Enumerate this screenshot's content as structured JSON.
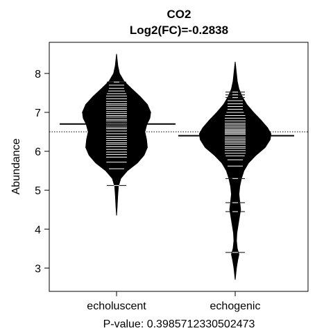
{
  "chart_data": {
    "type": "beanplot",
    "title": "CO2",
    "subtitle": "Log2(FC)=-0.2838",
    "ylabel": "Abundance",
    "xlabel": "P-value: 0.3985712330502473",
    "ylim": [
      2.4,
      8.8
    ],
    "yticks": [
      3,
      4,
      5,
      6,
      7,
      8
    ],
    "overall_mean": 6.5,
    "categories": [
      "echoluscent",
      "echogenic"
    ],
    "beans": [
      {
        "name": "echoluscent",
        "mean": 6.7,
        "min": 4.35,
        "max": 8.5,
        "density": [
          [
            4.35,
            0.0
          ],
          [
            4.6,
            0.015
          ],
          [
            4.9,
            0.03
          ],
          [
            5.1,
            0.045
          ],
          [
            5.3,
            0.1
          ],
          [
            5.5,
            0.26
          ],
          [
            5.7,
            0.5
          ],
          [
            5.9,
            0.66
          ],
          [
            6.1,
            0.74
          ],
          [
            6.3,
            0.72
          ],
          [
            6.5,
            0.68
          ],
          [
            6.7,
            0.73
          ],
          [
            6.85,
            0.8
          ],
          [
            7.0,
            0.82
          ],
          [
            7.2,
            0.74
          ],
          [
            7.4,
            0.57
          ],
          [
            7.6,
            0.37
          ],
          [
            7.8,
            0.18
          ],
          [
            8.0,
            0.07
          ],
          [
            8.2,
            0.03
          ],
          [
            8.5,
            0.0
          ]
        ],
        "observations": [
          5.12,
          5.55,
          5.72,
          5.85,
          5.92,
          5.98,
          6.05,
          6.12,
          6.18,
          6.22,
          6.28,
          6.33,
          6.38,
          6.45,
          6.52,
          6.58,
          6.62,
          6.68,
          6.72,
          6.78,
          6.82,
          6.88,
          6.92,
          6.97,
          7.02,
          7.08,
          7.12,
          7.18,
          7.22,
          7.28,
          7.35,
          7.42,
          7.48,
          7.55,
          7.62,
          7.7,
          7.78
        ]
      },
      {
        "name": "echogenic",
        "mean": 6.4,
        "min": 2.7,
        "max": 8.3,
        "density": [
          [
            2.7,
            0.0
          ],
          [
            3.0,
            0.03
          ],
          [
            3.2,
            0.06
          ],
          [
            3.35,
            0.09
          ],
          [
            3.5,
            0.05
          ],
          [
            3.7,
            0.03
          ],
          [
            3.9,
            0.04
          ],
          [
            4.1,
            0.07
          ],
          [
            4.3,
            0.1
          ],
          [
            4.5,
            0.13
          ],
          [
            4.7,
            0.11
          ],
          [
            4.9,
            0.09
          ],
          [
            5.1,
            0.11
          ],
          [
            5.3,
            0.15
          ],
          [
            5.5,
            0.21
          ],
          [
            5.7,
            0.32
          ],
          [
            5.9,
            0.5
          ],
          [
            6.1,
            0.72
          ],
          [
            6.3,
            0.84
          ],
          [
            6.45,
            0.86
          ],
          [
            6.6,
            0.78
          ],
          [
            6.8,
            0.62
          ],
          [
            7.0,
            0.44
          ],
          [
            7.2,
            0.28
          ],
          [
            7.4,
            0.17
          ],
          [
            7.6,
            0.09
          ],
          [
            7.8,
            0.05
          ],
          [
            8.0,
            0.03
          ],
          [
            8.3,
            0.0
          ]
        ],
        "observations": [
          3.4,
          4.45,
          4.68,
          5.3,
          5.62,
          5.78,
          5.88,
          5.95,
          6.02,
          6.08,
          6.12,
          6.18,
          6.22,
          6.26,
          6.3,
          6.34,
          6.38,
          6.41,
          6.44,
          6.47,
          6.5,
          6.53,
          6.56,
          6.6,
          6.64,
          6.68,
          6.72,
          6.78,
          6.85,
          6.92,
          7.0,
          7.08,
          7.15,
          7.22,
          7.3,
          7.38,
          7.45,
          7.52
        ]
      }
    ]
  }
}
